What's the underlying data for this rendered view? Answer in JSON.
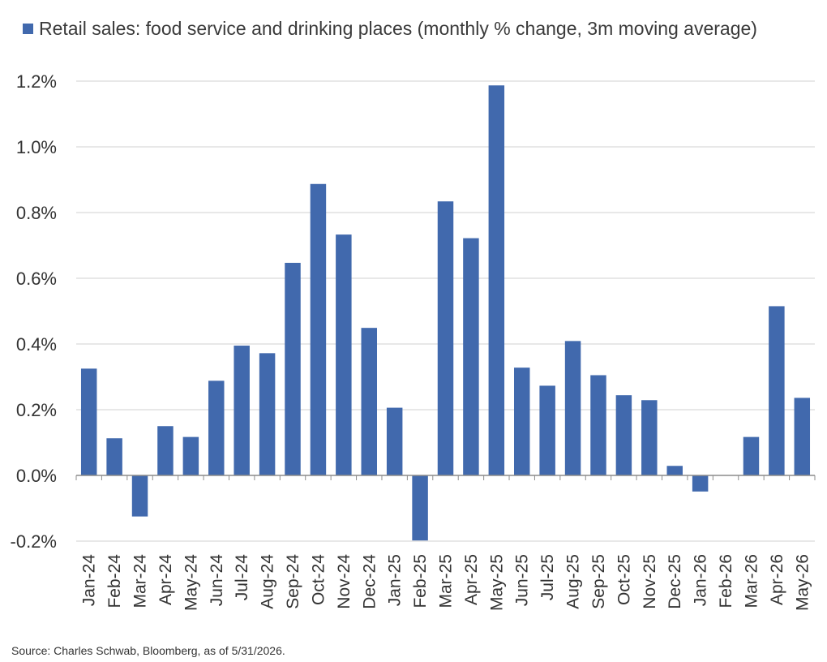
{
  "chart_data": {
    "type": "bar",
    "legend": {
      "label": "Retail sales: food service and drinking places (monthly % change, 3m moving average)",
      "position": "top-left"
    },
    "categories": [
      "Jan-24",
      "Feb-24",
      "Mar-24",
      "Apr-24",
      "May-24",
      "Jun-24",
      "Jul-24",
      "Aug-24",
      "Sep-24",
      "Oct-24",
      "Nov-24",
      "Dec-24",
      "Jan-25",
      "Feb-25",
      "Mar-25",
      "Apr-25",
      "May-25",
      "Jun-25",
      "Jul-25",
      "Aug-25",
      "Sep-25",
      "Oct-25",
      "Nov-25",
      "Dec-25",
      "Jan-26",
      "Feb-26",
      "Mar-26",
      "Apr-26",
      "May-26"
    ],
    "series": [
      {
        "name": "Retail sales: food service and drinking places (monthly % change, 3m moving average)",
        "values": [
          0.325,
          0.113,
          -0.125,
          0.15,
          0.117,
          0.288,
          0.395,
          0.372,
          0.647,
          0.887,
          0.733,
          0.449,
          0.206,
          -0.198,
          0.834,
          0.722,
          1.187,
          0.328,
          0.273,
          0.409,
          0.305,
          0.244,
          0.229,
          0.029,
          -0.049,
          0.0,
          0.117,
          0.515,
          0.236
        ]
      }
    ],
    "y_ticks": [
      "-0.2%",
      "0.0%",
      "0.2%",
      "0.4%",
      "0.6%",
      "0.8%",
      "1.0%",
      "1.2%"
    ],
    "ylim": [
      -0.2,
      1.2
    ],
    "grid": true,
    "bar_color": "#4169ad"
  },
  "source": "Source: Charles Schwab, Bloomberg, as of 5/31/2026."
}
